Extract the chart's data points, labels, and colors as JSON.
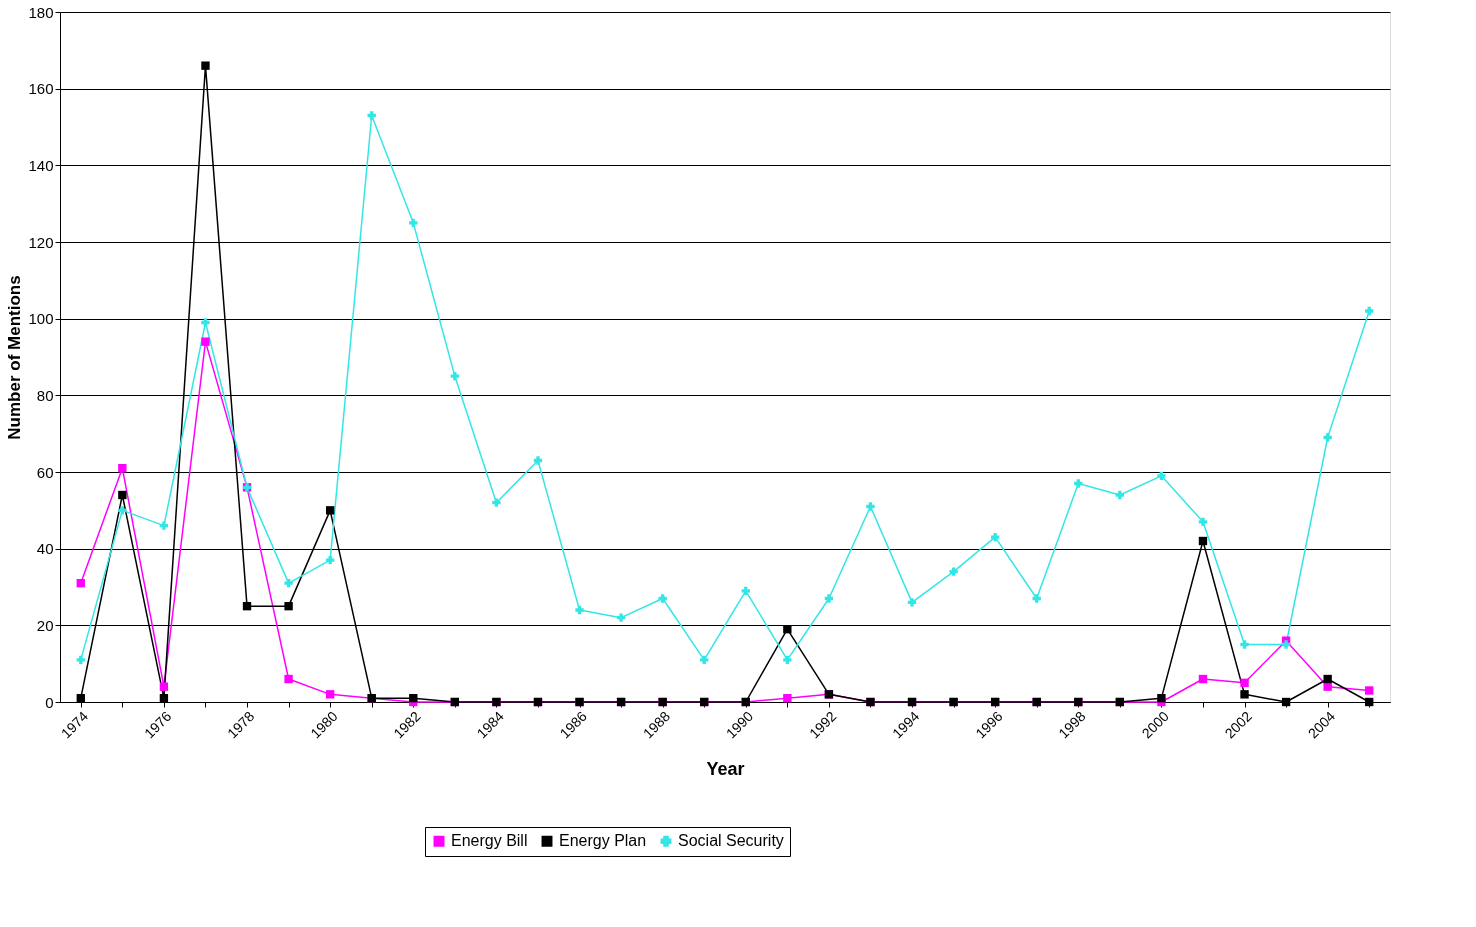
{
  "chart_data": {
    "type": "line",
    "xlabel": "Year",
    "ylabel": "Number of Mentions",
    "categories": [
      "1974",
      null,
      "1976",
      null,
      "1978",
      null,
      "1980",
      null,
      "1982",
      null,
      "1984",
      null,
      "1986",
      null,
      "1988",
      null,
      "1990",
      null,
      "1992",
      null,
      "1994",
      null,
      "1996",
      null,
      "1998",
      null,
      "2000",
      null,
      "2002",
      null,
      "2004",
      null
    ],
    "series": [
      {
        "name": "Energy Bill",
        "color": "#ff00ff",
        "marker": "square",
        "values": [
          31,
          61,
          4,
          94,
          56,
          6,
          2,
          1,
          0,
          0,
          0,
          0,
          0,
          0,
          0,
          0,
          0,
          1,
          2,
          0,
          0,
          0,
          0,
          0,
          0,
          0,
          0,
          6,
          5,
          16,
          4,
          3
        ]
      },
      {
        "name": "Energy Plan",
        "color": "#000000",
        "marker": "square",
        "values": [
          1,
          54,
          1,
          166,
          25,
          25,
          50,
          1,
          1,
          0,
          0,
          0,
          0,
          0,
          0,
          0,
          0,
          19,
          2,
          0,
          0,
          0,
          0,
          0,
          0,
          0,
          1,
          42,
          2,
          0,
          6,
          0
        ]
      },
      {
        "name": "Social Security",
        "color": "#33e6e6",
        "marker": "cross",
        "values": [
          11,
          50,
          46,
          99,
          56,
          31,
          37,
          153,
          125,
          85,
          52,
          63,
          24,
          22,
          27,
          11,
          29,
          11,
          27,
          51,
          26,
          34,
          43,
          27,
          57,
          54,
          59,
          47,
          15,
          15,
          69,
          102
        ]
      }
    ],
    "ylim": [
      0,
      180
    ],
    "yticks": [
      0,
      20,
      40,
      60,
      80,
      100,
      120,
      140,
      160,
      180
    ],
    "grid": "y",
    "legend": "bottom"
  }
}
